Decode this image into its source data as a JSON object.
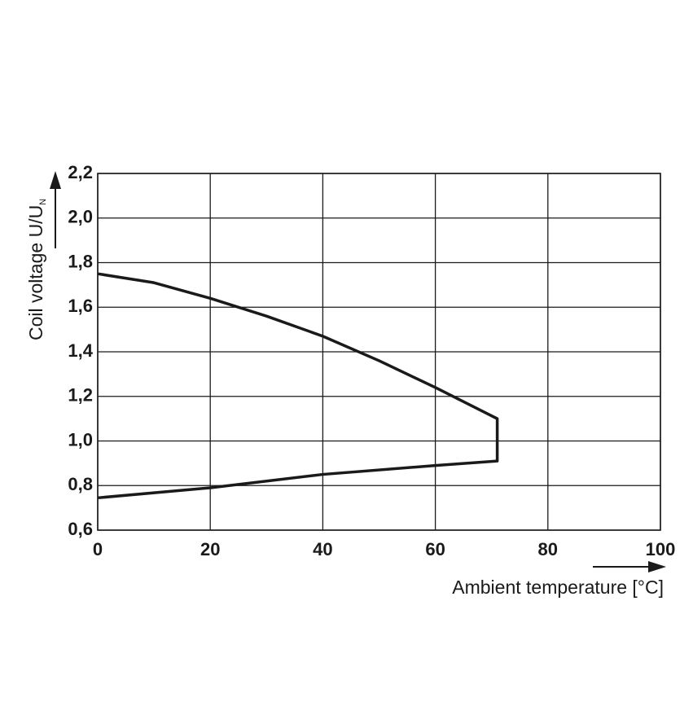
{
  "chart_data": {
    "type": "line",
    "x_label": "Ambient temperature [°C]",
    "y_label": "Coil voltage U/U",
    "y_label_sub": "N",
    "x": [
      0,
      10,
      20,
      30,
      40,
      50,
      60,
      71,
      71,
      60,
      40,
      20,
      0
    ],
    "values": [
      1.75,
      1.71,
      1.64,
      1.56,
      1.47,
      1.36,
      1.24,
      1.1,
      0.91,
      0.89,
      0.85,
      0.79,
      0.745
    ],
    "color": "#1a1a1a",
    "xlim": [
      0,
      100
    ],
    "xticks": [
      0,
      20,
      40,
      60,
      80,
      100
    ],
    "ylim": [
      0.6,
      2.2
    ],
    "yticks": [
      {
        "value": 0.6,
        "label": "0,6"
      },
      {
        "value": 0.8,
        "label": "0,8"
      },
      {
        "value": 1.0,
        "label": "1,0"
      },
      {
        "value": 1.2,
        "label": "1,2"
      },
      {
        "value": 1.4,
        "label": "1,4"
      },
      {
        "value": 1.6,
        "label": "1,6"
      },
      {
        "value": 1.8,
        "label": "1,8"
      },
      {
        "value": 2.0,
        "label": "2,0"
      },
      {
        "value": 2.2,
        "label": "2,2"
      }
    ],
    "grid": true
  }
}
